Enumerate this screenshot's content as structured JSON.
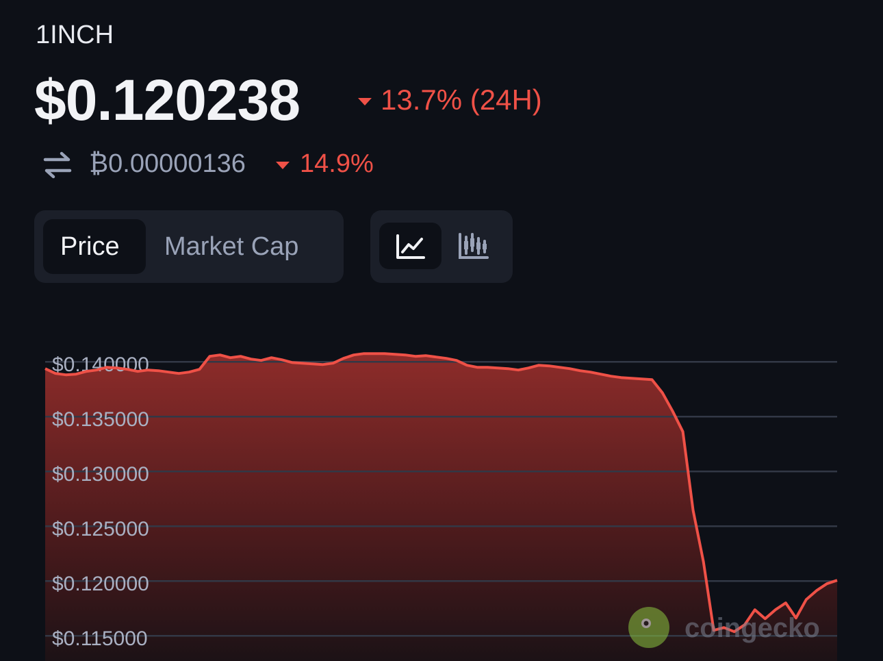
{
  "header": {
    "symbol": "1INCH",
    "price": "$0.120238",
    "change": "13.7% (24H)",
    "btc_price": "₿0.00000136",
    "btc_change": "14.9%"
  },
  "tabs": [
    "Price",
    "Market Cap"
  ],
  "watermark": "coingecko",
  "chart_data": {
    "type": "line",
    "color": "#ef5147",
    "grid": true,
    "ylim": [
      0.1127,
      0.1418
    ],
    "yticks": [
      {
        "value": 0.14,
        "label": "$0.140000"
      },
      {
        "value": 0.135,
        "label": "$0.135000"
      },
      {
        "value": 0.13,
        "label": "$0.130000"
      },
      {
        "value": 0.125,
        "label": "$0.125000"
      },
      {
        "value": 0.12,
        "label": "$0.120000"
      },
      {
        "value": 0.115,
        "label": "$0.115000"
      }
    ],
    "values": [
      0.139375,
      0.138938,
      0.138813,
      0.138875,
      0.139125,
      0.13925,
      0.1395,
      0.139438,
      0.139313,
      0.139125,
      0.13925,
      0.139188,
      0.139063,
      0.138938,
      0.139063,
      0.139313,
      0.1405,
      0.140625,
      0.140375,
      0.1405,
      0.14025,
      0.140125,
      0.140375,
      0.140188,
      0.139938,
      0.139875,
      0.139813,
      0.13975,
      0.139875,
      0.140313,
      0.140625,
      0.14075,
      0.14075,
      0.14075,
      0.140688,
      0.140625,
      0.1405,
      0.140563,
      0.140438,
      0.140313,
      0.140125,
      0.139688,
      0.1395,
      0.1395,
      0.139438,
      0.139375,
      0.13925,
      0.139438,
      0.139688,
      0.139625,
      0.1395,
      0.139375,
      0.139188,
      0.139063,
      0.138875,
      0.138688,
      0.138563,
      0.1385,
      0.138438,
      0.138375,
      0.137188,
      0.1355,
      0.133625,
      0.126438,
      0.12175,
      0.1155,
      0.11575,
      0.115375,
      0.116,
      0.117375,
      0.116563,
      0.117375,
      0.118,
      0.116625,
      0.118313,
      0.119125,
      0.11975,
      0.120063
    ]
  }
}
